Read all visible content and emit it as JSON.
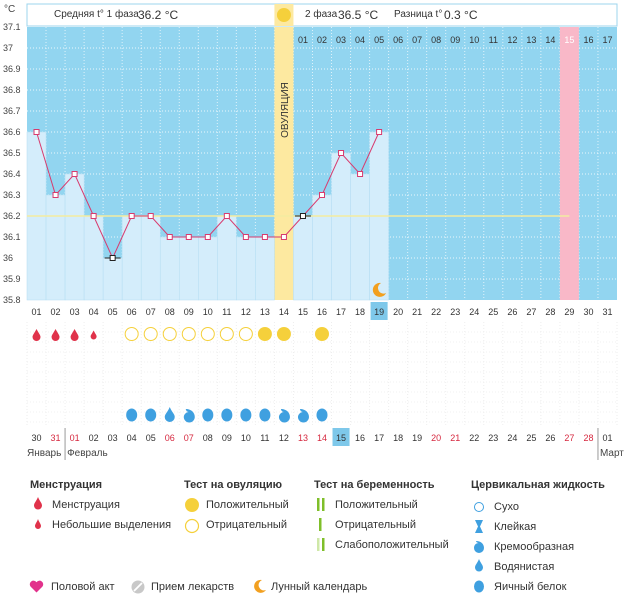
{
  "header": {
    "phase1_label": "Средняя t° 1 фаза",
    "phase1_value": "36.2 °С",
    "phase2_label": "2 фаза",
    "phase2_value": "36.5 °С",
    "diff_label": "Разница t°",
    "diff_value": "0.3 °С"
  },
  "colors": {
    "low_zone": "#92d5f0",
    "high_zone": "#92d5f0",
    "fill_column": "#d4edfb",
    "line": "#d83b6e",
    "coverline": "#f3eca0",
    "ovulation": "#fde9a0",
    "highlight": "#f9b8c8",
    "weekend": "#d6283f",
    "menstruation": "#e0324a",
    "test_positive": "#f5d03b",
    "fluid": "#3fa0e0"
  },
  "chart_data": {
    "type": "line",
    "y_unit": "°С",
    "ylim": [
      35.8,
      37.1
    ],
    "yticks": [
      "37.1",
      "37",
      "36.9",
      "36.8",
      "36.7",
      "36.6",
      "36.5",
      "36.4",
      "36.3",
      "36.2",
      "36.1",
      "36",
      "35.9",
      "35.8"
    ],
    "cycle_days": [
      "01",
      "02",
      "03",
      "04",
      "05",
      "06",
      "07",
      "08",
      "09",
      "10",
      "11",
      "12",
      "13",
      "14",
      "15",
      "16",
      "17",
      "18",
      "19",
      "20",
      "21",
      "22",
      "23",
      "24",
      "25",
      "26",
      "27",
      "28",
      "29",
      "30",
      "31"
    ],
    "dpo_labels": [
      "01",
      "02",
      "03",
      "04",
      "05",
      "06",
      "07",
      "08",
      "09",
      "10",
      "11",
      "12",
      "13",
      "14",
      "15",
      "16",
      "17"
    ],
    "dpo_highlight": "15",
    "temperature": [
      36.6,
      36.3,
      36.4,
      36.2,
      36.0,
      36.2,
      36.2,
      36.1,
      36.1,
      36.1,
      36.2,
      36.1,
      36.1,
      36.1,
      36.2,
      36.3,
      36.5,
      36.4,
      36.6
    ],
    "open_markers_days": [
      "05",
      "15"
    ],
    "coverline": 36.2,
    "ovulation_day": "14",
    "ovulation_label": "ОВУЛЯЦИЯ",
    "cycle_day_highlight": "19",
    "moon_day": "19",
    "calendar_dates": [
      "30",
      "31",
      "01",
      "02",
      "03",
      "04",
      "05",
      "06",
      "07",
      "08",
      "09",
      "10",
      "11",
      "12",
      "13",
      "14",
      "15",
      "16",
      "17",
      "18",
      "19",
      "20",
      "21",
      "22",
      "23",
      "24",
      "25",
      "26",
      "27",
      "28",
      "01"
    ],
    "weekend_dates": [
      1,
      2,
      7,
      8,
      14,
      15,
      21,
      22,
      28,
      29
    ],
    "date_highlight": 16,
    "months": [
      "Январь",
      "Февраль",
      "Март"
    ],
    "menstruation": [
      "heavy",
      "heavy",
      "heavy",
      "light"
    ],
    "ovulation_tests": {
      "06": "neg",
      "07": "neg",
      "08": "neg",
      "09": "neg",
      "10": "neg",
      "11": "neg",
      "12": "neg",
      "13": "pos",
      "14": "pos",
      "16": "pos"
    },
    "cervical_fluid": {
      "06": "egg-white",
      "07": "egg-white",
      "08": "watery",
      "09": "creamy",
      "10": "egg-white",
      "11": "egg-white",
      "12": "egg-white",
      "13": "egg-white",
      "14": "creamy",
      "15": "creamy",
      "16": "egg-white"
    }
  },
  "legend": {
    "menstruation_title": "Менструация",
    "menstruation_items": [
      "Менструация",
      "Небольшие выделения"
    ],
    "ovulation_test_title": "Тест на овуляцию",
    "ovulation_test_items": [
      "Положительный",
      "Отрицательный"
    ],
    "pregnancy_test_title": "Тест на беременность",
    "pregnancy_test_items": [
      "Положительный",
      "Отрицательный",
      "Слабоположительный"
    ],
    "cervical_title": "Цервикальная жидкость",
    "cervical_items": [
      "Сухо",
      "Клейкая",
      "Кремообразная",
      "Водянистая",
      "Яичный белок"
    ],
    "bottom_items": [
      "Половой акт",
      "Прием лекарств",
      "Лунный календарь"
    ]
  }
}
